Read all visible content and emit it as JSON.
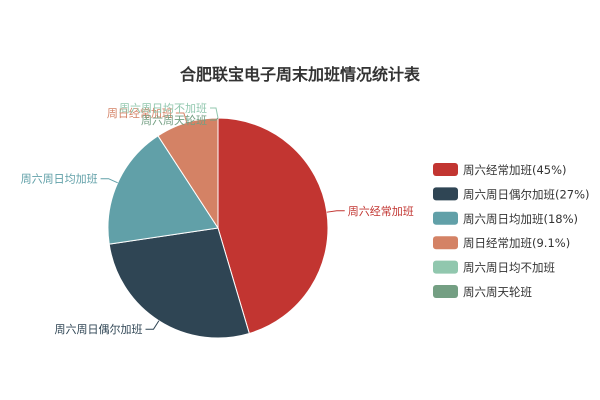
{
  "chart_data": {
    "type": "pie",
    "title": "合肥联宝电子周末加班情况统计表",
    "slices": [
      {
        "label": "周六经常加班",
        "value": 45,
        "legend": "周六经常加班(45%)",
        "color": "#c23531"
      },
      {
        "label": "周六周日偶尔加班",
        "value": 27,
        "legend": "周六周日偶尔加班(27%)",
        "color": "#2f4554"
      },
      {
        "label": "周六周日均加班",
        "value": 18,
        "legend": "周六周日均加班(18%)",
        "color": "#61a0a8"
      },
      {
        "label": "周日经常加班",
        "value": 9.1,
        "legend": "周日经常加班(9.1%)",
        "color": "#d48265"
      },
      {
        "label": "周六周日均不加班",
        "value": 0,
        "legend": "周六周日均不加班",
        "color": "#91c7ae"
      },
      {
        "label": "周六周天轮班",
        "value": 0,
        "legend": "周六周天轮班",
        "color": "#749f83"
      }
    ],
    "legend_position": "right"
  }
}
